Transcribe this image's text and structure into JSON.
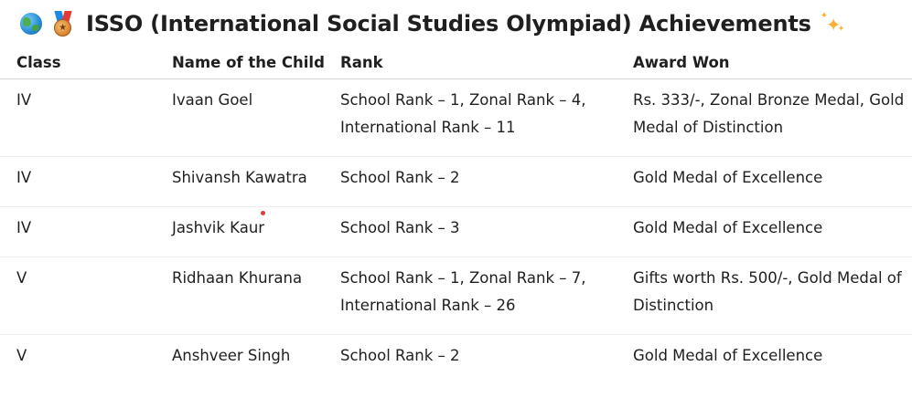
{
  "title": "ISSO (International Social Studies Olympiad) Achievements",
  "icons": {
    "leading": [
      "globe-icon",
      "medal-icon"
    ],
    "trailing": "sparkles-icon"
  },
  "table": {
    "headers": [
      "Class",
      "Name of the Child",
      "Rank",
      "Award Won"
    ],
    "rows": [
      {
        "class": "IV",
        "name": "Ivaan Goel",
        "rank": "School Rank – 1, Zonal Rank – 4, International Rank – 11",
        "award": "Rs. 333/-, Zonal Bronze Medal, Gold Medal of Distinction"
      },
      {
        "class": "IV",
        "name": "Shivansh Kawatra",
        "rank": "School Rank – 2",
        "award": "Gold Medal of Excellence"
      },
      {
        "class": "IV",
        "name": "Jashvik Kaur",
        "rank": "School Rank – 3",
        "award": "Gold Medal of Excellence"
      },
      {
        "class": "V",
        "name": "Ridhaan Khurana",
        "rank": "School Rank – 1, Zonal Rank – 7, International Rank – 26",
        "award": "Gifts worth Rs. 500/-, Gold Medal of Distinction"
      },
      {
        "class": "V",
        "name": "Anshveer Singh",
        "rank": "School Rank – 2",
        "award": "Gold Medal of Excellence"
      }
    ]
  }
}
